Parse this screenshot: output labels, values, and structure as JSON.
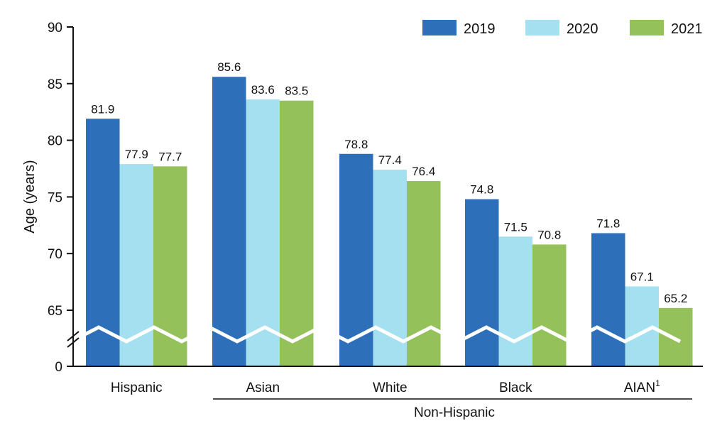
{
  "chart_data": {
    "type": "bar",
    "ylabel": "Age (years)",
    "categories": [
      "Hispanic",
      "Asian",
      "White",
      "Black",
      "AIAN"
    ],
    "category_superscripts": [
      "",
      "",
      "",
      "",
      "1"
    ],
    "group_label": "Non-Hispanic",
    "series": [
      {
        "name": "2019",
        "color": "#2e6fba",
        "values": [
          81.9,
          85.6,
          78.8,
          74.8,
          71.8
        ]
      },
      {
        "name": "2020",
        "color": "#a4e0f0",
        "values": [
          77.9,
          83.6,
          77.4,
          71.5,
          67.1
        ]
      },
      {
        "name": "2021",
        "color": "#94c15a",
        "values": [
          77.7,
          83.5,
          76.4,
          70.8,
          65.2
        ]
      }
    ],
    "y_ticks": [
      0,
      65,
      70,
      75,
      80,
      85,
      90
    ],
    "ylim": [
      60,
      90
    ],
    "axis_break": true,
    "legend_position": "top-right",
    "grid": false
  }
}
